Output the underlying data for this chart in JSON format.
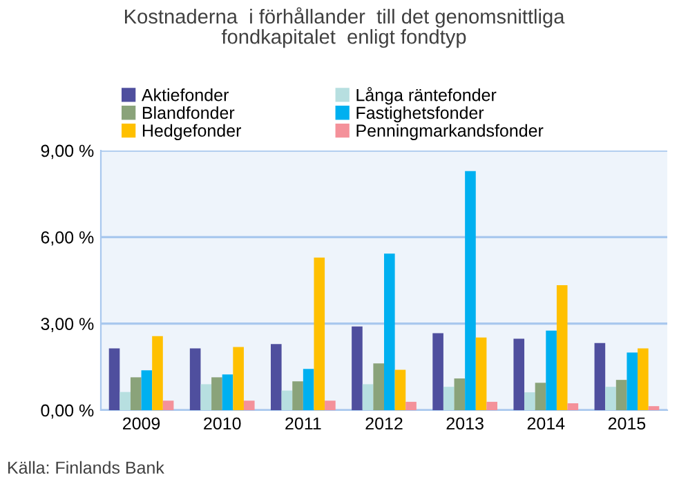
{
  "chart_data": {
    "type": "bar",
    "title": "Kostnaderna  i förhållander  till det genomsnittliga\nfondkapitalet  enligt fondtyp",
    "categories": [
      "2009",
      "2010",
      "2011",
      "2012",
      "2013",
      "2014",
      "2015"
    ],
    "series": [
      {
        "name": "Aktiefonder",
        "color": "#4f4f9e",
        "values": [
          2.14,
          2.14,
          2.29,
          2.9,
          2.67,
          2.48,
          2.33
        ]
      },
      {
        "name": "Långa räntefonder",
        "color": "#b7dfe0",
        "values": [
          0.63,
          0.9,
          0.68,
          0.9,
          0.81,
          0.62,
          0.81
        ]
      },
      {
        "name": "Blandfonder",
        "color": "#8aa37a",
        "values": [
          1.14,
          1.14,
          1.0,
          1.62,
          1.1,
          0.95,
          1.05
        ]
      },
      {
        "name": "Fastighetsfonder",
        "color": "#00b0f0",
        "values": [
          1.38,
          1.24,
          1.43,
          5.43,
          8.29,
          2.76,
          2.0
        ]
      },
      {
        "name": "Hedgefonder",
        "color": "#ffc000",
        "values": [
          2.57,
          2.19,
          5.29,
          1.4,
          2.52,
          4.33,
          2.14
        ]
      },
      {
        "name": "Penningmarkandsfonder",
        "color": "#f4919a",
        "values": [
          0.33,
          0.33,
          0.33,
          0.29,
          0.29,
          0.24,
          0.14
        ]
      }
    ],
    "ylim": [
      0,
      9
    ],
    "yticks": [
      {
        "value": 0,
        "label": "0,00 %"
      },
      {
        "value": 3,
        "label": "3,00 %"
      },
      {
        "value": 6,
        "label": "6,00 %"
      },
      {
        "value": 9,
        "label": "9,00 %"
      }
    ],
    "grid": "y",
    "legend": "top",
    "annotations": [
      "Källa: Finlands Bank"
    ]
  }
}
